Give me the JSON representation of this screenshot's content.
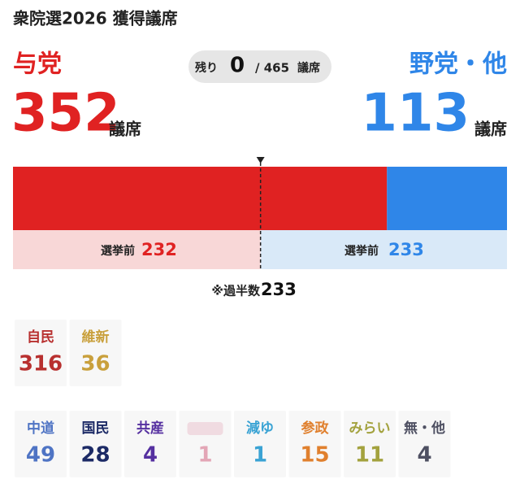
{
  "title": "衆院選2026 獲得議席",
  "remaining": {
    "label": "残り",
    "count": 0,
    "total": "/ 465",
    "unit": "議席"
  },
  "ruling": {
    "name": "与党",
    "seats": 352,
    "unit": "議席",
    "before_label": "選挙前",
    "before": 232,
    "color": "#e02222"
  },
  "opposition": {
    "name": "野党・他",
    "seats": 113,
    "unit": "議席",
    "before_label": "選挙前",
    "before": 233,
    "color": "#2f86e8"
  },
  "majority": {
    "label": "※過半数",
    "seats": 233
  },
  "parties": [
    [
      {
        "name": "自民",
        "seats": 316,
        "color": "#b8302f"
      },
      {
        "name": "維新",
        "seats": 36,
        "color": "#c9a03c"
      }
    ],
    [
      {
        "name": "中道",
        "seats": 49,
        "color": "#4f74c4"
      },
      {
        "name": "国民",
        "seats": 28,
        "color": "#1c2a66"
      },
      {
        "name": "共産",
        "seats": 4,
        "color": "#5530a0"
      },
      {
        "name": null,
        "seats": 1,
        "color": "#e3a6b6"
      },
      {
        "name": "減ゆ",
        "seats": 1,
        "color": "#3aa3d4"
      },
      {
        "name": "参政",
        "seats": 15,
        "color": "#e0802e"
      },
      {
        "name": "みらい",
        "seats": 11,
        "color": "#a3a23e"
      },
      {
        "name": "無・他",
        "seats": 4,
        "color": "#4e5062"
      }
    ]
  ]
}
